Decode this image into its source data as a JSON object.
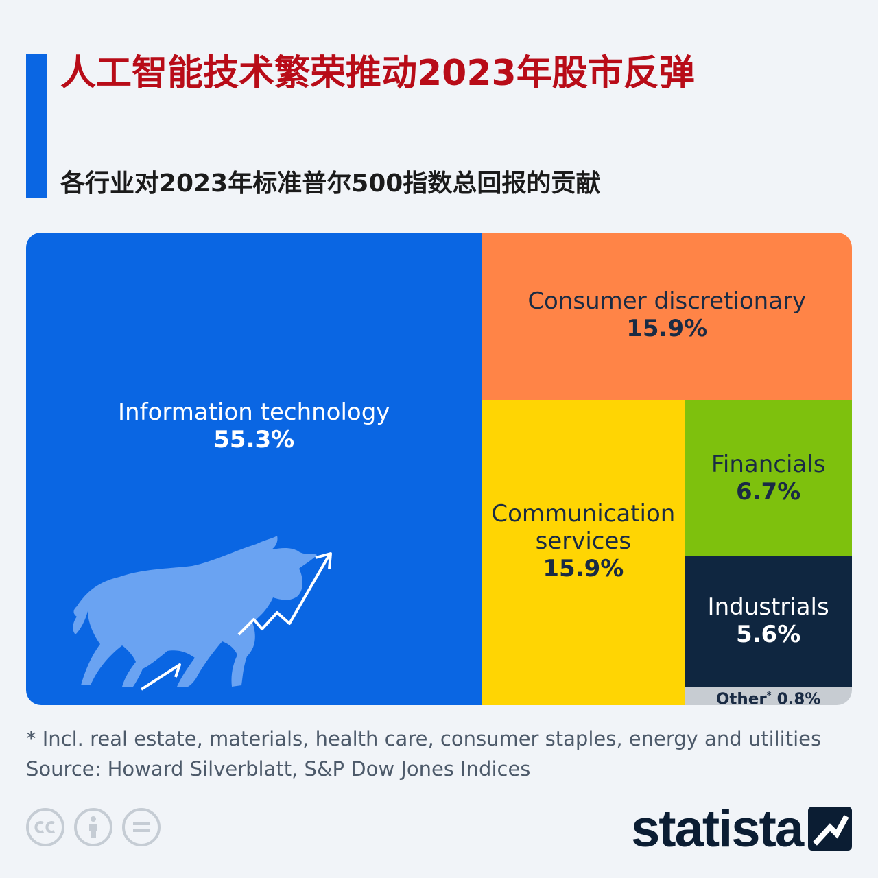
{
  "header": {
    "title": "人工智能技术繁荣推动2023年股市反弹",
    "subtitle": "各行业对2023年标准普尔500指数总回报的贡献"
  },
  "chart_data": {
    "type": "treemap",
    "title": "人工智能技术繁荣推动2023年股市反弹",
    "subtitle": "各行业对2023年标准普尔500指数总回报的贡献",
    "unit": "%",
    "segments": [
      {
        "name": "Information technology",
        "value": 55.3,
        "label": "55.3%",
        "color": "#0a66e3"
      },
      {
        "name": "Consumer discretionary",
        "value": 15.9,
        "label": "15.9%",
        "color": "#ff8447"
      },
      {
        "name": "Communication services",
        "value": 15.9,
        "label": "15.9%",
        "color": "#ffd503"
      },
      {
        "name": "Financials",
        "value": 6.7,
        "label": "6.7%",
        "color": "#7ec10d"
      },
      {
        "name": "Industrials",
        "value": 5.6,
        "label": "5.6%",
        "color": "#0f2640"
      },
      {
        "name": "Other",
        "value": 0.8,
        "label": "0.8%",
        "color": "#c7ccd2",
        "marker": "*"
      }
    ]
  },
  "footer": {
    "footnote": "* Incl. real estate, materials, health care, consumer staples, energy and utilities",
    "source": "Source: Howard Silverblatt, S&P Dow Jones Indices",
    "logo_text": "statista"
  },
  "colors": {
    "title": "#b80c18",
    "accent": "#0a66e3",
    "background": "#f1f4f8"
  },
  "icons": [
    "bull-icon",
    "rising-chart-icon",
    "cc-icon",
    "attribution-icon",
    "no-derivatives-icon",
    "statista-logo-icon"
  ]
}
